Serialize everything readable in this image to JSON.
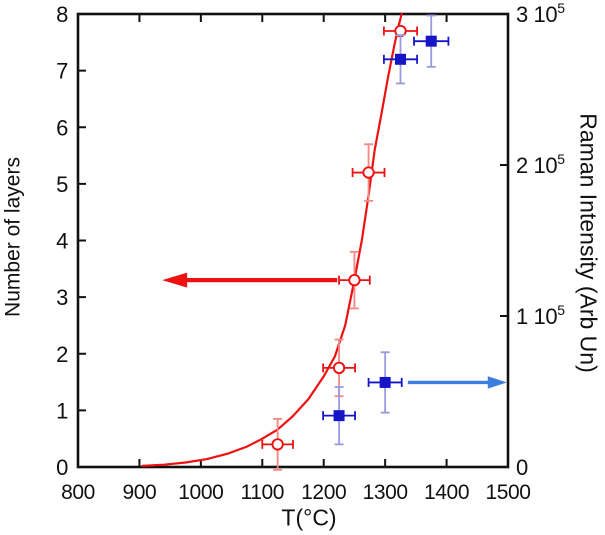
{
  "chart_data": {
    "type": "scatter",
    "title": "",
    "xlabel": "T(°C)",
    "ylabel_left": "Number of layers",
    "ylabel_right": "Raman Intensity (Arb Un)",
    "xlim": [
      800,
      1500
    ],
    "ylim_left": [
      0,
      8
    ],
    "ylim_right": [
      0,
      300000
    ],
    "grid": false,
    "legend": "none",
    "x_ticks": [
      800,
      900,
      1000,
      1100,
      1200,
      1300,
      1400,
      1500
    ],
    "y_ticks_left": [
      0,
      1,
      2,
      3,
      4,
      5,
      6,
      7,
      8
    ],
    "y_ticks_right": [
      {
        "value": 0,
        "label": "0"
      },
      {
        "value": 100000,
        "label": "1 10^5"
      },
      {
        "value": 200000,
        "label": "2 10^5"
      },
      {
        "value": 300000,
        "label": "3 10^5"
      }
    ],
    "colors": {
      "axis": "#111111",
      "red_main": "#ee1111",
      "red_light": "#f48882",
      "blue_main": "#1616c8",
      "blue_light": "#9a9ae0",
      "blue_arrow": "#3c7de0"
    },
    "series": [
      {
        "name": "Number of layers",
        "axis": "left",
        "marker": "open-circle",
        "color": "#ee1111",
        "errbar_v_color": "#f48882",
        "points": [
          {
            "x": 1125,
            "y": 0.4,
            "xerr": 25,
            "yerr": 0.45
          },
          {
            "x": 1225,
            "y": 1.75,
            "xerr": 26,
            "yerr": 0.5
          },
          {
            "x": 1250,
            "y": 3.3,
            "xerr": 25,
            "yerr": 0.5
          },
          {
            "x": 1273,
            "y": 5.2,
            "xerr": 26,
            "yerr": 0.5
          },
          {
            "x": 1325,
            "y": 7.7,
            "xerr": 27,
            "yerr": 0
          }
        ]
      },
      {
        "name": "Raman Intensity",
        "axis": "right",
        "marker": "filled-square",
        "color": "#1616c8",
        "errbar_v_color": "#9a9ae0",
        "points": [
          {
            "x": 1225,
            "y": 34000,
            "xerr": 26,
            "yerr": 19000
          },
          {
            "x": 1300,
            "y": 56000,
            "xerr": 27,
            "yerr": 20000
          },
          {
            "x": 1325,
            "y": 270000,
            "xerr": 27,
            "yerr": 16000
          },
          {
            "x": 1375,
            "y": 282000,
            "xerr": 28,
            "yerr": 17000
          }
        ]
      }
    ],
    "fit_curve": {
      "name": "exponential fit to number of layers",
      "color": "#ee1111",
      "axis": "left",
      "points": [
        [
          905,
          0.02
        ],
        [
          940,
          0.04
        ],
        [
          975,
          0.08
        ],
        [
          1010,
          0.14
        ],
        [
          1045,
          0.24
        ],
        [
          1075,
          0.36
        ],
        [
          1100,
          0.5
        ],
        [
          1125,
          0.66
        ],
        [
          1150,
          0.9
        ],
        [
          1175,
          1.2
        ],
        [
          1200,
          1.6
        ],
        [
          1218,
          1.95
        ],
        [
          1235,
          2.5
        ],
        [
          1250,
          3.3
        ],
        [
          1262,
          4.0
        ],
        [
          1273,
          4.8
        ],
        [
          1283,
          5.6
        ],
        [
          1295,
          6.3
        ],
        [
          1305,
          6.9
        ],
        [
          1315,
          7.45
        ],
        [
          1322,
          7.8
        ],
        [
          1327,
          8.0
        ]
      ]
    },
    "annotations": [
      {
        "id": "left-arrow",
        "direction": "left",
        "axis": "left",
        "y": 3.3,
        "x_from": 1222,
        "x_to": 937,
        "color": "#ee1111"
      },
      {
        "id": "right-arrow",
        "direction": "right",
        "axis": "right",
        "y": 56000,
        "x_from": 1337,
        "x_to": 1498,
        "color": "#3c7de0"
      }
    ]
  }
}
